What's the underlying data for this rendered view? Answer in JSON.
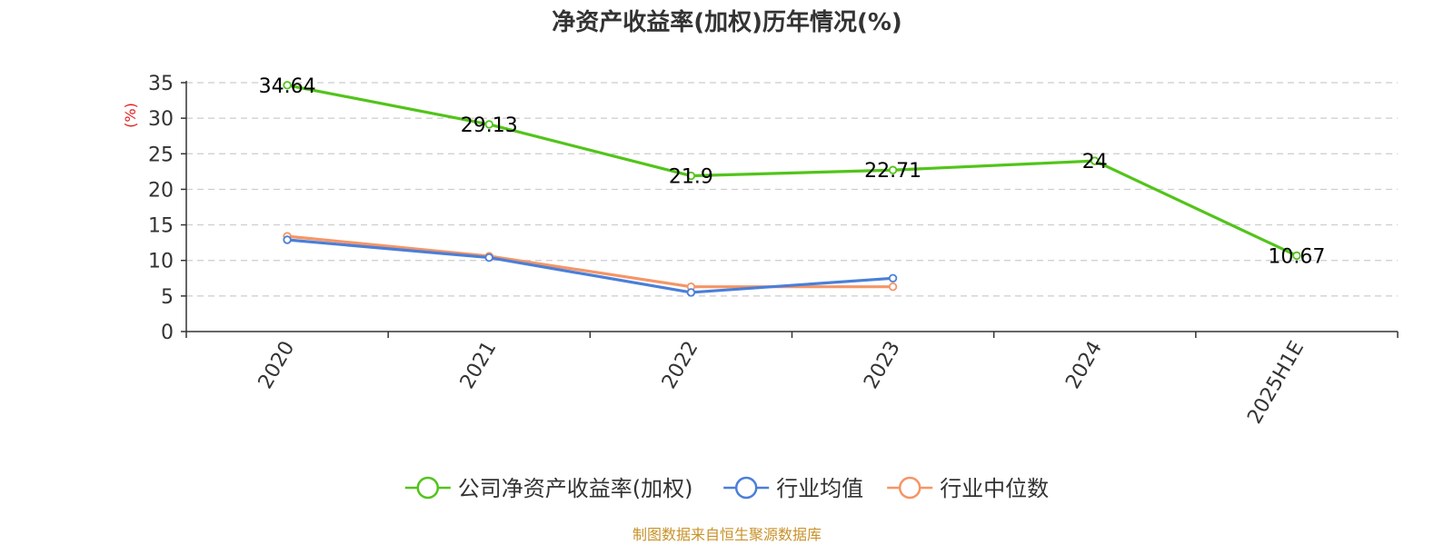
{
  "chart_data": {
    "type": "line",
    "title": "净资产收益率(加权)历年情况(%)",
    "ylabel": "(%)",
    "categories": [
      "2020",
      "2021",
      "2022",
      "2023",
      "2024",
      "2025H1E"
    ],
    "ylim": [
      0,
      35
    ],
    "yticks": [
      0,
      5,
      10,
      15,
      20,
      25,
      30,
      35
    ],
    "grid": true,
    "legend_position": "bottom",
    "series": [
      {
        "name": "公司净资产收益率(加权)",
        "color": "#52c41a",
        "values": [
          34.64,
          29.13,
          21.9,
          22.71,
          24,
          10.67
        ],
        "value_labels": [
          "34.64",
          "29.13",
          "21.9",
          "22.71",
          "24",
          "10.67"
        ],
        "show_labels": true
      },
      {
        "name": "行业均值",
        "color": "#4a7fd9",
        "values": [
          12.9,
          10.4,
          5.5,
          7.5,
          null,
          null
        ],
        "show_labels": false
      },
      {
        "name": "行业中位数",
        "color": "#f59566",
        "values": [
          13.4,
          10.6,
          6.3,
          6.3,
          null,
          null
        ],
        "show_labels": false
      }
    ],
    "source": "制图数据来自恒生聚源数据库",
    "source_color": "#c8922a",
    "ylabel_color": "#e02020"
  }
}
